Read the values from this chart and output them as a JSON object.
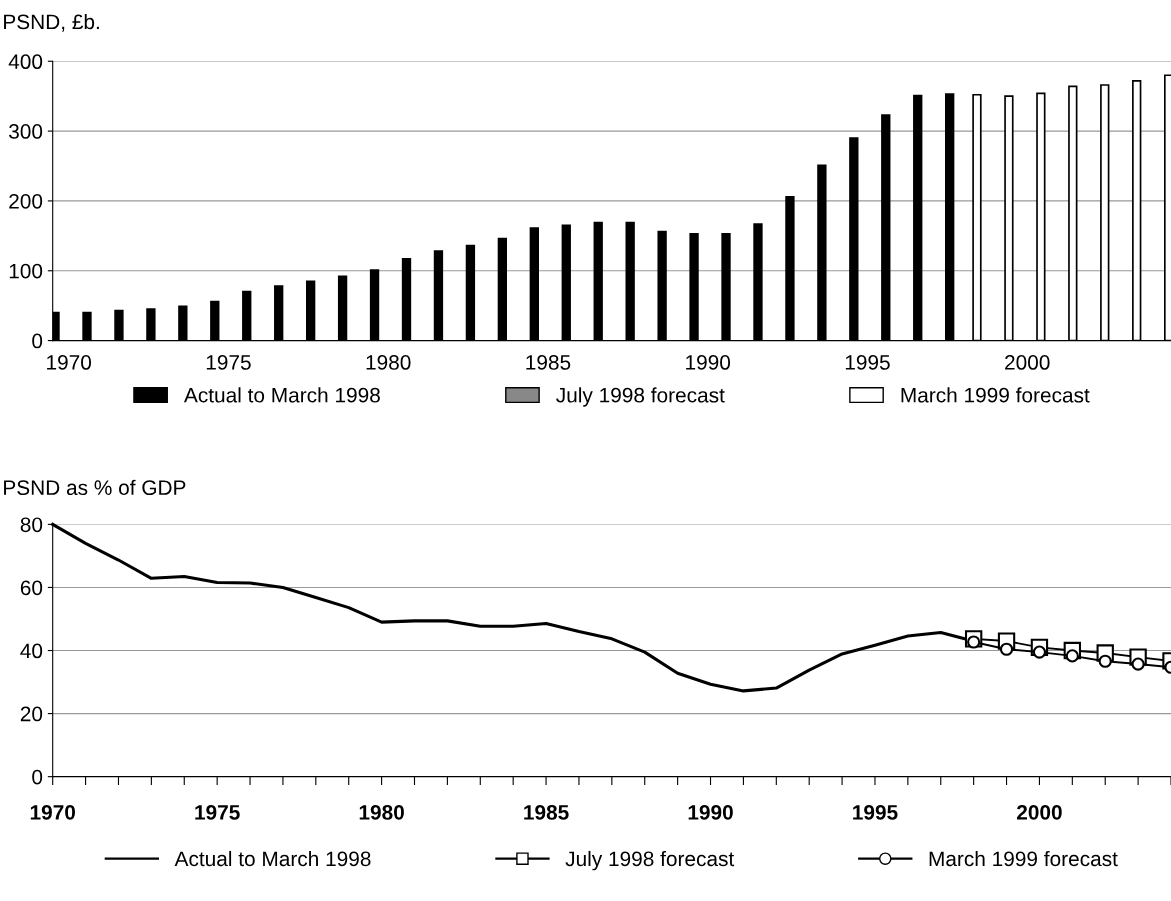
{
  "chart_data": [
    {
      "type": "bar",
      "ylabel": "PSND, £b.",
      "categories": [
        "1970",
        null,
        null,
        null,
        null,
        "1975",
        null,
        null,
        null,
        null,
        "1980",
        null,
        null,
        null,
        null,
        "1985",
        null,
        null,
        null,
        null,
        "1990",
        null,
        null,
        null,
        null,
        "1995",
        null,
        null,
        null,
        null,
        "2000",
        null,
        null,
        null,
        null
      ],
      "series": [
        {
          "name": "Actual to March 1998",
          "color": "#000000",
          "values": [
            40,
            40,
            43,
            45,
            49,
            56,
            70,
            78,
            85,
            92,
            101,
            117,
            128,
            136,
            146,
            161,
            165,
            169,
            169,
            156,
            153,
            153,
            167,
            206,
            251,
            290,
            323,
            351,
            353,
            null,
            null,
            null,
            null,
            null,
            null
          ]
        },
        {
          "name": "July 1998 forecast",
          "color": "#888888",
          "values": [
            null,
            null,
            null,
            null,
            null,
            null,
            null,
            null,
            null,
            null,
            null,
            null,
            null,
            null,
            null,
            null,
            null,
            null,
            null,
            null,
            null,
            null,
            null,
            null,
            null,
            null,
            null,
            null,
            null,
            null,
            null,
            null,
            null,
            null,
            null
          ]
        },
        {
          "name": "March 1999 forecast",
          "color": "#ffffff",
          "values": [
            null,
            null,
            null,
            null,
            null,
            null,
            null,
            null,
            null,
            null,
            null,
            null,
            null,
            null,
            null,
            null,
            null,
            null,
            null,
            null,
            null,
            null,
            null,
            null,
            null,
            null,
            null,
            null,
            352,
            350,
            354,
            364,
            366,
            372,
            380
          ]
        }
      ],
      "ylim": [
        0,
        400
      ],
      "yticks": [
        0,
        100,
        200,
        300,
        400
      ],
      "grid": "y",
      "legend": "bottom"
    },
    {
      "type": "line",
      "ylabel": "PSND as % of GDP",
      "series": [
        {
          "name": "Actual to March 1998",
          "color": "#000000",
          "marker": "none",
          "x": [
            1970,
            1971,
            1972,
            1973,
            1974,
            1975,
            1976,
            1977,
            1978,
            1979,
            1980,
            1981,
            1982,
            1983,
            1984,
            1985,
            1986,
            1987,
            1988,
            1989,
            1990,
            1991,
            1992,
            1993,
            1994,
            1995,
            1996,
            1997,
            1998
          ],
          "values": [
            80,
            74,
            68.7,
            62.9,
            63.5,
            61.6,
            61.4,
            60,
            56.8,
            53.6,
            49,
            49.4,
            49.4,
            47.7,
            47.7,
            48.6,
            46,
            43.7,
            39.5,
            32.8,
            29.3,
            27.2,
            28.1,
            33.8,
            38.9,
            41.7,
            44.6,
            45.7,
            43
          ]
        },
        {
          "name": "July 1998 forecast",
          "color": "#000000",
          "marker": "square",
          "x": [
            1998,
            1999,
            2000,
            2001,
            2002,
            2003,
            2004
          ],
          "values": [
            43.7,
            43,
            41,
            40,
            39.2,
            37.9,
            36.7
          ]
        },
        {
          "name": "March 1999 forecast",
          "color": "#000000",
          "marker": "circle",
          "x": [
            1998,
            1999,
            2000,
            2001,
            2002,
            2003,
            2004
          ],
          "values": [
            42.7,
            40.4,
            39.5,
            38.3,
            36.6,
            35.7,
            34.7
          ]
        }
      ],
      "xlim": [
        1970,
        2004
      ],
      "xticks": [
        1970,
        {
          "value": 1971,
          "label": null
        },
        {
          "value": 1972,
          "label": null
        },
        {
          "value": 1973,
          "label": null
        },
        {
          "value": 1974,
          "label": null
        },
        1975,
        {
          "value": 1976,
          "label": null
        },
        {
          "value": 1977,
          "label": null
        },
        {
          "value": 1978,
          "label": null
        },
        {
          "value": 1979,
          "label": null
        },
        1980,
        {
          "value": 1981,
          "label": null
        },
        {
          "value": 1982,
          "label": null
        },
        {
          "value": 1983,
          "label": null
        },
        {
          "value": 1984,
          "label": null
        },
        1985,
        {
          "value": 1986,
          "label": null
        },
        {
          "value": 1987,
          "label": null
        },
        {
          "value": 1988,
          "label": null
        },
        {
          "value": 1989,
          "label": null
        },
        1990,
        {
          "value": 1991,
          "label": null
        },
        {
          "value": 1992,
          "label": null
        },
        {
          "value": 1993,
          "label": null
        },
        {
          "value": 1994,
          "label": null
        },
        1995,
        {
          "value": 1996,
          "label": null
        },
        {
          "value": 1997,
          "label": null
        },
        {
          "value": 1998,
          "label": null
        },
        {
          "value": 1999,
          "label": null
        },
        2000,
        {
          "value": 2001,
          "label": null
        },
        {
          "value": 2002,
          "label": null
        },
        {
          "value": 2003,
          "label": null
        },
        {
          "value": 2004,
          "label": null
        }
      ],
      "ylim": [
        0,
        80
      ],
      "yticks": [
        0,
        20,
        40,
        60,
        80
      ],
      "grid": "y",
      "legend": "bottom",
      "line_style": "solid"
    }
  ]
}
